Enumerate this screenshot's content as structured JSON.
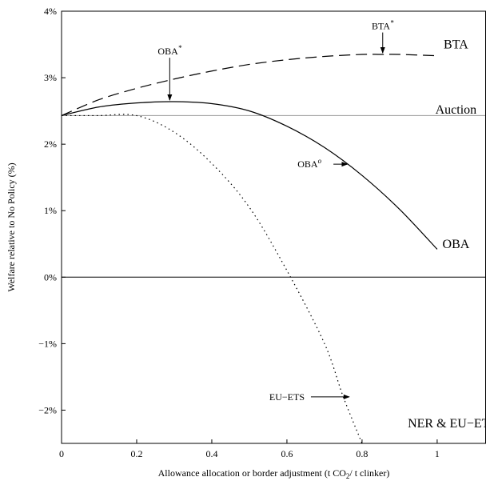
{
  "chart_data": {
    "type": "line",
    "title": "",
    "xlabel_parts": [
      "Allowance allocation or border adjustment (t CO",
      "2",
      "/ t clinker)"
    ],
    "ylabel": "Welfare relative to No Policy (%)",
    "xlim": [
      0,
      1.13
    ],
    "ylim": [
      -2.5,
      4
    ],
    "xticks": [
      0,
      0.2,
      0.4,
      0.6,
      0.8,
      1
    ],
    "xtick_labels": [
      "0",
      "0.2",
      "0.4",
      "0.6",
      "0.8",
      "1"
    ],
    "yticks": [
      -2,
      -1,
      0,
      1,
      2,
      3,
      4
    ],
    "ytick_labels": [
      "−2%",
      "−1%",
      "0%",
      "1%",
      "2%",
      "3%",
      "4%"
    ],
    "grid": false,
    "series": [
      {
        "name": "BTA",
        "style": "dashed",
        "x": [
          0,
          0.1,
          0.2,
          0.3,
          0.4,
          0.5,
          0.6,
          0.7,
          0.8,
          0.85,
          0.9,
          1.0
        ],
        "y": [
          2.43,
          2.67,
          2.84,
          2.98,
          3.1,
          3.2,
          3.27,
          3.32,
          3.35,
          3.35,
          3.35,
          3.33
        ]
      },
      {
        "name": "Auction",
        "style": "solid-gray",
        "x": [
          0,
          1.13
        ],
        "y": [
          2.43,
          2.43
        ]
      },
      {
        "name": "OBA",
        "style": "solid",
        "x": [
          0,
          0.1,
          0.2,
          0.3,
          0.4,
          0.5,
          0.6,
          0.7,
          0.8,
          0.9,
          1.0
        ],
        "y": [
          2.43,
          2.56,
          2.62,
          2.64,
          2.61,
          2.5,
          2.27,
          1.95,
          1.53,
          1.02,
          0.42
        ]
      },
      {
        "name": "NER & EU−ETS",
        "style": "dotted",
        "x": [
          0,
          0.05,
          0.1,
          0.2,
          0.3,
          0.4,
          0.5,
          0.6,
          0.7,
          0.75,
          0.8
        ],
        "y": [
          2.43,
          2.43,
          2.43,
          2.43,
          2.18,
          1.71,
          1.05,
          0.1,
          -1.0,
          -1.8,
          -2.5
        ]
      }
    ],
    "zero_line": 0,
    "annotations": [
      {
        "text": "OBA",
        "sup": "*",
        "x": 0.288,
        "y": 2.64,
        "label_x": 0.288,
        "label_y": 3.3
      },
      {
        "text": "BTA",
        "sup": "*",
        "x": 0.855,
        "y": 3.35,
        "label_x": 0.855,
        "label_y": 3.68
      },
      {
        "text": "OBA",
        "sup": "o",
        "x": 0.765,
        "y": 1.7,
        "label_x": 0.66,
        "label_y": 1.7
      },
      {
        "text": "EU−ETS",
        "sup": "",
        "x": 0.77,
        "y": -1.8,
        "label_x": 0.6,
        "label_y": -1.8
      }
    ],
    "series_labels": [
      {
        "text": "BTA",
        "x": 1.05,
        "y": 3.5
      },
      {
        "text": "Auction",
        "x": 1.05,
        "y": 2.52
      },
      {
        "text": "OBA",
        "x": 1.05,
        "y": 0.5
      },
      {
        "text": "NER & EU−ETS",
        "x": 1.04,
        "y": -2.2
      }
    ]
  }
}
